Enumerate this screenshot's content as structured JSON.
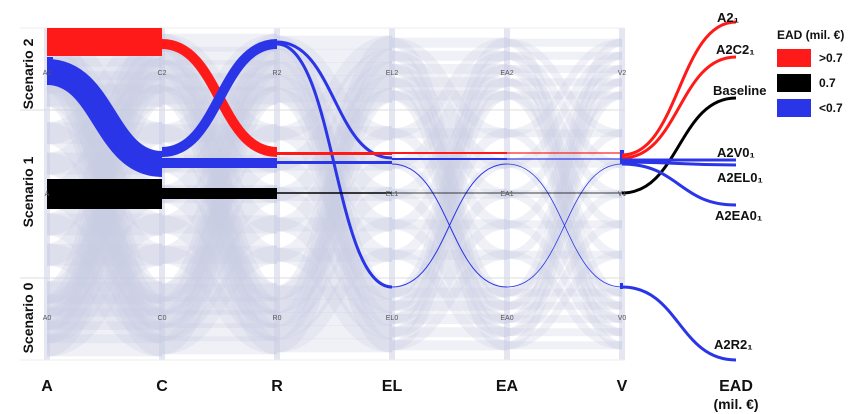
{
  "chart_data": {
    "type": "parallel-sets",
    "axes": [
      "A",
      "C",
      "R",
      "EL",
      "EA",
      "V",
      "EAD"
    ],
    "ead_axis_unit": "(mil. €)",
    "scenario_labels": [
      "Scenario 2",
      "Scenario 1",
      "Scenario 0"
    ],
    "level_labels": {
      "A": [
        "A2",
        "A",
        "A0"
      ],
      "C": [
        "C2",
        "",
        "C0"
      ],
      "R": [
        "R2",
        "",
        "R0"
      ],
      "EL": [
        "EL2",
        "EL1",
        "EL0"
      ],
      "EA": [
        "EA2",
        "EA1",
        "EA0"
      ],
      "V": [
        "V2",
        "V1",
        "V0"
      ]
    },
    "legend": {
      "title": "EAD (mil. €)",
      "items": [
        {
          "label": ">0.7",
          "color": "#ff1a1a"
        },
        {
          "label": "0.7",
          "color": "#000000"
        },
        {
          "label": "<0.7",
          "color": "#2b35e8"
        }
      ]
    },
    "background_color": "#c8cbe4",
    "highlighted_paths": [
      {
        "name": "A2₁",
        "color": "#ff1a1a",
        "levels": {
          "A": 2,
          "C": 2,
          "R": 1,
          "EL": 1,
          "EA": 1,
          "V": 1
        }
      },
      {
        "name": "A2C2₁",
        "color": "#ff1a1a",
        "levels": {
          "A": 2,
          "C": 2,
          "R": 1,
          "EL": 1,
          "EA": 1,
          "V": 1
        }
      },
      {
        "name": "Baseline",
        "color": "#000000",
        "levels": {
          "A": 1,
          "C": 1,
          "R": 1,
          "EL": 1,
          "EA": 1,
          "V": 1
        }
      },
      {
        "name": "A2V0₁",
        "color": "#2b35e8",
        "levels": {
          "A": 2,
          "C": 1,
          "R": 1,
          "EL": 1,
          "EA": 1,
          "V": 1
        }
      },
      {
        "name": "A2EL0₁",
        "color": "#2b35e8",
        "levels": {
          "A": 2,
          "C": 1,
          "R": 1,
          "EL": 1,
          "EA": 1,
          "V": 1
        }
      },
      {
        "name": "A2EA0₁",
        "color": "#2b35e8",
        "levels": {
          "A": 2,
          "C": 1,
          "R": 1,
          "EL": 1,
          "EA": 1,
          "V": 1
        }
      },
      {
        "name": "A2R2₁",
        "color": "#2b35e8",
        "levels": {
          "A": 2,
          "C": 1,
          "R": 2,
          "EL": 1,
          "EA": 1,
          "V": 0
        }
      }
    ]
  }
}
